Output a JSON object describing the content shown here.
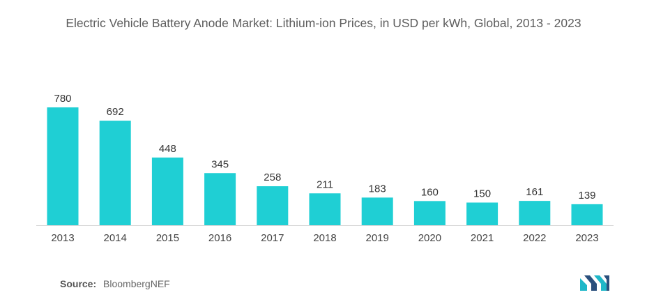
{
  "chart_data": {
    "type": "bar",
    "title": "Electric Vehicle Battery Anode Market: Lithium-ion Prices, in USD per kWh, Global, 2013 - 2023",
    "categories": [
      "2013",
      "2014",
      "2015",
      "2016",
      "2017",
      "2018",
      "2019",
      "2020",
      "2021",
      "2022",
      "2023"
    ],
    "values": [
      780,
      692,
      448,
      345,
      258,
      211,
      183,
      160,
      150,
      161,
      139
    ],
    "xlabel": "",
    "ylabel": "",
    "grid": false,
    "legend": "none",
    "bar_color": "#1fcfd4"
  },
  "source": {
    "label": "Source:",
    "text": "BloombergNEF"
  },
  "logo": {
    "icon": "mordor-intelligence-logo-icon",
    "colors": [
      "#1fb7c8",
      "#2a4f7c"
    ]
  }
}
